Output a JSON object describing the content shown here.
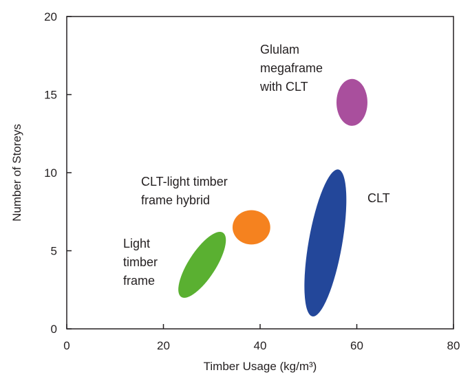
{
  "chart_data": {
    "type": "scatter",
    "title": "",
    "xlabel": "Timber Usage (kg/m³)",
    "ylabel": "Number of Storeys",
    "xlim": [
      0,
      80
    ],
    "ylim": [
      0,
      20
    ],
    "xticks": [
      "0",
      "20",
      "40",
      "60",
      "80"
    ],
    "yticks": [
      "0",
      "5",
      "10",
      "15",
      "20"
    ],
    "grid": false,
    "legend": "none",
    "regions": [
      {
        "label": "Light\ntimber\nframe",
        "color": "#5ab031",
        "center": [
          28,
          4.1
        ],
        "x_range": [
          22.8,
          33.0
        ],
        "y_range": [
          2.0,
          6.2
        ]
      },
      {
        "label": "CLT-light timber\nframe hybrid",
        "color": "#f5821f",
        "center": [
          38.2,
          6.5
        ],
        "x_range": [
          34.3,
          42.1
        ],
        "y_range": [
          5.4,
          7.6
        ]
      },
      {
        "label": "CLT",
        "color": "#23479a",
        "center": [
          53.5,
          5.5
        ],
        "x_range": [
          47.2,
          59.8
        ],
        "y_range": [
          0.7,
          10.3
        ]
      },
      {
        "label": "Glulam\nmegaframe\nwith CLT",
        "color": "#a94f9d",
        "center": [
          59.0,
          14.5
        ],
        "x_range": [
          55.8,
          62.2
        ],
        "y_range": [
          13.0,
          16.0
        ]
      }
    ]
  }
}
